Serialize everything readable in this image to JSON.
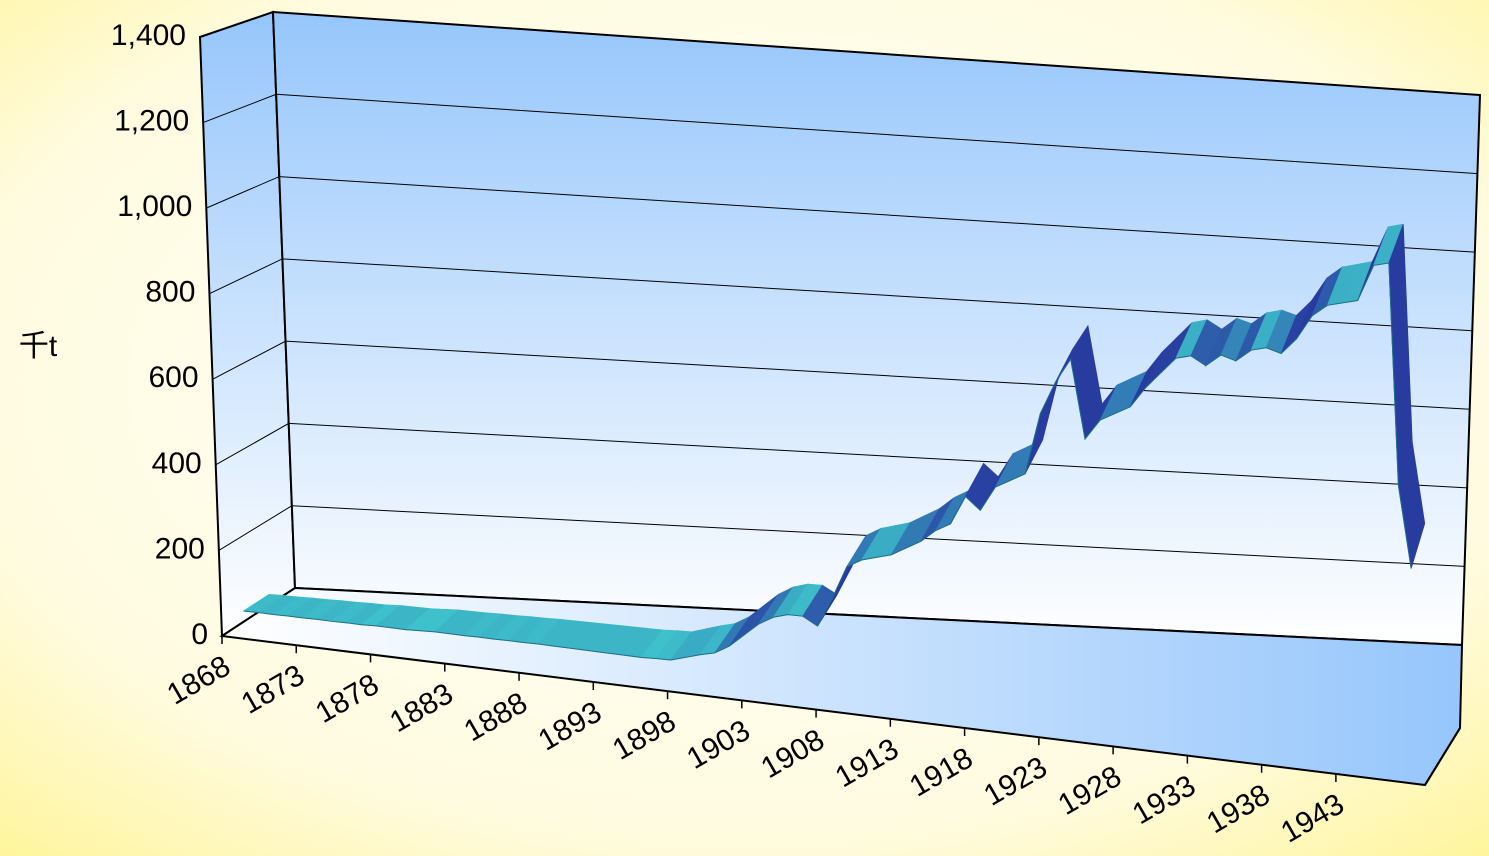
{
  "chart_data": {
    "type": "line3d",
    "y_label": "千t",
    "x": [
      1868,
      1869,
      1870,
      1871,
      1872,
      1873,
      1874,
      1875,
      1876,
      1877,
      1878,
      1879,
      1880,
      1881,
      1882,
      1883,
      1884,
      1885,
      1886,
      1887,
      1888,
      1889,
      1890,
      1891,
      1892,
      1893,
      1894,
      1895,
      1896,
      1897,
      1898,
      1899,
      1900,
      1901,
      1902,
      1903,
      1904,
      1905,
      1906,
      1907,
      1908,
      1909,
      1910,
      1911,
      1912,
      1913,
      1914,
      1915,
      1916,
      1917,
      1918,
      1919,
      1920,
      1921,
      1922,
      1923,
      1924,
      1925,
      1926,
      1927,
      1928,
      1929,
      1930,
      1931,
      1932,
      1933,
      1934,
      1935,
      1936,
      1937,
      1938,
      1939,
      1940,
      1941,
      1942,
      1943,
      1944,
      1945,
      1946,
      1947
    ],
    "values": [
      25,
      25,
      24,
      24,
      23,
      23,
      22,
      22,
      21,
      22,
      21,
      20,
      21,
      22,
      21,
      20,
      20,
      19,
      19,
      18,
      18,
      17,
      16,
      15,
      14,
      13,
      12,
      11,
      12,
      12,
      22,
      32,
      40,
      60,
      90,
      120,
      140,
      150,
      150,
      130,
      200,
      280,
      300,
      310,
      320,
      340,
      360,
      390,
      410,
      480,
      450,
      510,
      530,
      550,
      700,
      780,
      840,
      650,
      700,
      720,
      740,
      790,
      830,
      870,
      880,
      860,
      890,
      880,
      910,
      920,
      910,
      950,
      1010,
      1040,
      1050,
      1060,
      1150,
      1160,
      620,
      420
    ],
    "xlim": [
      1868,
      1949
    ],
    "xticks": [
      1868,
      1873,
      1878,
      1883,
      1888,
      1893,
      1898,
      1903,
      1908,
      1913,
      1918,
      1923,
      1928,
      1933,
      1938,
      1943
    ],
    "ylim": [
      0,
      1400
    ],
    "yticks": [
      0,
      200,
      400,
      600,
      800,
      {
        "value": 1000,
        "label": "1,000"
      },
      {
        "value": 1200,
        "label": "1,200"
      },
      {
        "value": 1400,
        "label": "1,400"
      }
    ],
    "grid": true,
    "color": "#40d0d0"
  }
}
